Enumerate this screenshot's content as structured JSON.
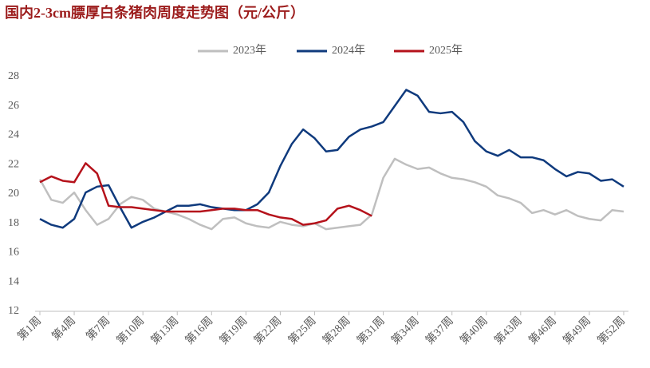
{
  "chart_data": {
    "type": "line",
    "title": "国内2-3cm膘厚白条猪肉周度走势图（元/公斤）",
    "categories": [
      "第1周",
      null,
      null,
      "第4周",
      null,
      null,
      "第7周",
      null,
      null,
      "第10周",
      null,
      null,
      "第13周",
      null,
      null,
      "第16周",
      null,
      null,
      "第19周",
      null,
      null,
      "第22周",
      null,
      null,
      "第25周",
      null,
      null,
      "第28周",
      null,
      null,
      "第31周",
      null,
      null,
      "第34周",
      null,
      null,
      "第37周",
      null,
      null,
      "第40周",
      null,
      null,
      "第43周",
      null,
      null,
      "第46周",
      null,
      null,
      "第49周",
      null,
      null,
      "第52周"
    ],
    "series": [
      {
        "name": "2023年",
        "color": "#bfbfbf",
        "values": [
          21.0,
          19.6,
          19.4,
          20.1,
          18.9,
          17.9,
          18.3,
          19.3,
          19.8,
          19.6,
          19.0,
          18.8,
          18.6,
          18.3,
          17.9,
          17.6,
          18.3,
          18.4,
          18.0,
          17.8,
          17.7,
          18.1,
          17.9,
          17.8,
          18.0,
          17.6,
          17.7,
          17.8,
          17.9,
          18.6,
          21.1,
          22.4,
          22.0,
          21.7,
          21.8,
          21.4,
          21.1,
          21.0,
          20.8,
          20.5,
          19.9,
          19.7,
          19.4,
          18.7,
          18.9,
          18.6,
          18.9,
          18.5,
          18.3,
          18.2,
          18.9,
          18.8
        ]
      },
      {
        "name": "2024年",
        "color": "#0f3a7d",
        "values": [
          18.3,
          17.9,
          17.7,
          18.3,
          20.1,
          20.5,
          20.6,
          19.1,
          17.7,
          18.1,
          18.4,
          18.8,
          19.2,
          19.2,
          19.3,
          19.1,
          19.0,
          18.9,
          18.9,
          19.3,
          20.1,
          21.9,
          23.4,
          24.4,
          23.8,
          22.9,
          23.0,
          23.9,
          24.4,
          24.6,
          24.9,
          26.0,
          27.1,
          26.7,
          25.6,
          25.5,
          25.6,
          24.9,
          23.6,
          22.9,
          22.6,
          23.0,
          22.5,
          22.5,
          22.3,
          21.7,
          21.2,
          21.5,
          21.4,
          20.9,
          21.0,
          20.5
        ]
      },
      {
        "name": "2025年",
        "color": "#b5121b",
        "values": [
          20.8,
          21.2,
          20.9,
          20.8,
          22.1,
          21.4,
          19.2,
          19.1,
          19.1,
          19.0,
          18.9,
          18.8,
          18.8,
          18.8,
          18.8,
          18.9,
          19.0,
          19.0,
          18.9,
          18.9,
          18.6,
          18.4,
          18.3,
          17.9,
          18.0,
          18.2,
          19.0,
          19.2,
          18.9,
          18.5,
          null,
          null,
          null,
          null,
          null,
          null,
          null,
          null,
          null,
          null,
          null,
          null,
          null,
          null,
          null,
          null,
          null,
          null,
          null,
          null,
          null,
          null
        ]
      }
    ],
    "ylim": [
      12,
      28
    ],
    "yticks": [
      12,
      14,
      16,
      18,
      20,
      22,
      24,
      26,
      28
    ]
  }
}
